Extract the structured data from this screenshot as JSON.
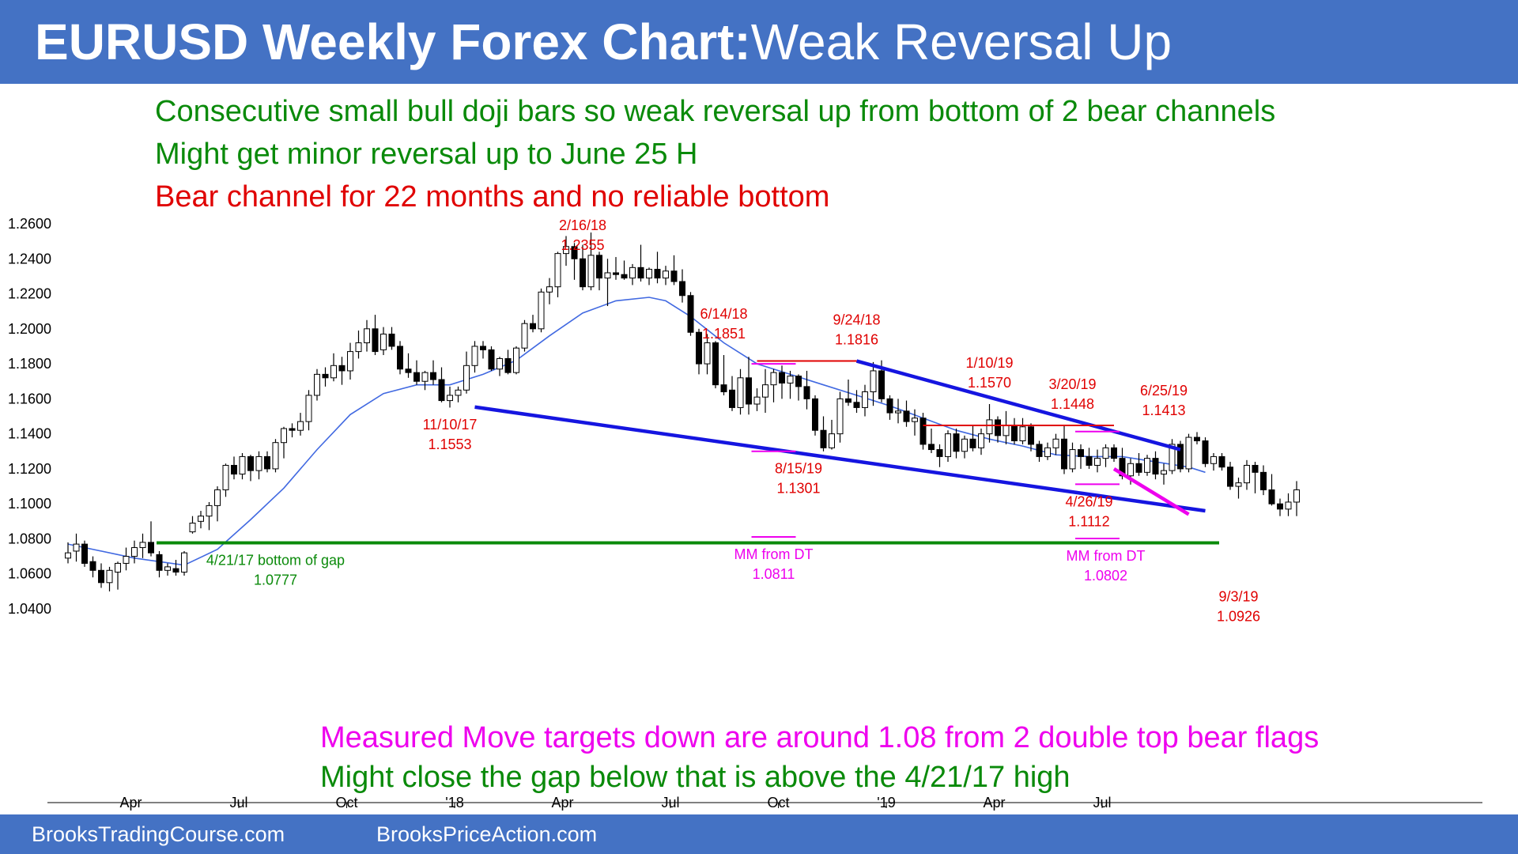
{
  "title": {
    "bold": "EURUSD Weekly Forex Chart:",
    "rest": "Weak Reversal Up"
  },
  "commentary": [
    {
      "text": "Consecutive small bull doji bars so weak reversal up from bottom of 2 bear channels",
      "color": "#0A8A0A"
    },
    {
      "text": "Might get minor reversal up to June 25 H",
      "color": "#0A8A0A"
    },
    {
      "text": "Bear channel for 22 months and no reliable bottom",
      "color": "#E00000"
    }
  ],
  "bottom_notes": [
    {
      "text": "Measured Move targets down are around 1.08 from 2 double top bear flags",
      "color": "#EE00EE"
    },
    {
      "text": "Might close the gap below that is above the 4/21/17 high",
      "color": "#0A8A0A"
    }
  ],
  "footer": {
    "left": "BrooksTradingCourse.com",
    "right": "BrooksPriceAction.com"
  },
  "colors": {
    "title_bar": "#4472C4",
    "bull_candle": "#FFFFFF",
    "bear_candle": "#000000",
    "moving_average": "#4169E1",
    "channel_lines": "#1515E0",
    "annotation_red": "#E00000",
    "annotation_green": "#0A8A0A",
    "annotation_magenta": "#EE00EE"
  },
  "chart_data": {
    "type": "candlestick",
    "symbol": "EURUSD",
    "timeframe": "weekly",
    "ylim": [
      1.03,
      1.275
    ],
    "y_ticks": [
      "1.2600",
      "1.2400",
      "1.2200",
      "1.2000",
      "1.1800",
      "1.1600",
      "1.1400",
      "1.1200",
      "1.1000",
      "1.0800",
      "1.0600",
      "1.0400"
    ],
    "x_ticks": [
      "Apr",
      "Jul",
      "Oct",
      "'18",
      "Apr",
      "Jul",
      "Oct",
      "'19",
      "Apr",
      "Jul"
    ],
    "x_tick_weeks": [
      7,
      20,
      33,
      46,
      59,
      72,
      85,
      98,
      111,
      124
    ],
    "candles": [
      [
        1.069,
        1.078,
        1.066,
        1.072
      ],
      [
        1.073,
        1.083,
        1.067,
        1.077
      ],
      [
        1.077,
        1.079,
        1.064,
        1.066
      ],
      [
        1.067,
        1.07,
        1.058,
        1.062
      ],
      [
        1.062,
        1.066,
        1.052,
        1.055
      ],
      [
        1.055,
        1.064,
        1.05,
        1.062
      ],
      [
        1.061,
        1.067,
        1.051,
        1.066
      ],
      [
        1.066,
        1.075,
        1.062,
        1.07
      ],
      [
        1.07,
        1.079,
        1.066,
        1.075
      ],
      [
        1.075,
        1.083,
        1.069,
        1.078
      ],
      [
        1.078,
        1.09,
        1.07,
        1.072
      ],
      [
        1.071,
        1.073,
        1.058,
        1.062
      ],
      [
        1.062,
        1.066,
        1.059,
        1.064
      ],
      [
        1.063,
        1.068,
        1.059,
        1.061
      ],
      [
        1.061,
        1.073,
        1.059,
        1.072
      ],
      [
        1.084,
        1.093,
        1.083,
        1.089
      ],
      [
        1.09,
        1.096,
        1.086,
        1.093
      ],
      [
        1.093,
        1.101,
        1.085,
        1.099
      ],
      [
        1.099,
        1.11,
        1.09,
        1.108
      ],
      [
        1.108,
        1.123,
        1.104,
        1.122
      ],
      [
        1.122,
        1.127,
        1.114,
        1.117
      ],
      [
        1.117,
        1.129,
        1.114,
        1.127
      ],
      [
        1.127,
        1.128,
        1.113,
        1.119
      ],
      [
        1.119,
        1.13,
        1.114,
        1.127
      ],
      [
        1.127,
        1.13,
        1.118,
        1.12
      ],
      [
        1.12,
        1.137,
        1.118,
        1.135
      ],
      [
        1.135,
        1.144,
        1.126,
        1.143
      ],
      [
        1.143,
        1.146,
        1.138,
        1.142
      ],
      [
        1.142,
        1.152,
        1.139,
        1.147
      ],
      [
        1.147,
        1.165,
        1.142,
        1.162
      ],
      [
        1.162,
        1.177,
        1.159,
        1.174
      ],
      [
        1.174,
        1.178,
        1.167,
        1.172
      ],
      [
        1.172,
        1.186,
        1.17,
        1.179
      ],
      [
        1.179,
        1.184,
        1.168,
        1.176
      ],
      [
        1.176,
        1.192,
        1.171,
        1.187
      ],
      [
        1.187,
        1.199,
        1.183,
        1.192
      ],
      [
        1.192,
        1.205,
        1.187,
        1.2
      ],
      [
        1.2,
        1.208,
        1.185,
        1.187
      ],
      [
        1.188,
        1.201,
        1.185,
        1.197
      ],
      [
        1.197,
        1.201,
        1.188,
        1.19
      ],
      [
        1.19,
        1.193,
        1.174,
        1.177
      ],
      [
        1.177,
        1.186,
        1.172,
        1.175
      ],
      [
        1.175,
        1.182,
        1.168,
        1.17
      ],
      [
        1.17,
        1.176,
        1.165,
        1.175
      ],
      [
        1.175,
        1.182,
        1.168,
        1.171
      ],
      [
        1.171,
        1.178,
        1.158,
        1.159
      ],
      [
        1.159,
        1.167,
        1.155,
        1.162
      ],
      [
        1.162,
        1.167,
        1.158,
        1.165
      ],
      [
        1.165,
        1.187,
        1.163,
        1.179
      ],
      [
        1.179,
        1.193,
        1.175,
        1.19
      ],
      [
        1.19,
        1.193,
        1.183,
        1.188
      ],
      [
        1.188,
        1.19,
        1.176,
        1.177
      ],
      [
        1.177,
        1.184,
        1.173,
        1.183
      ],
      [
        1.183,
        1.188,
        1.174,
        1.175
      ],
      [
        1.175,
        1.19,
        1.174,
        1.189
      ],
      [
        1.189,
        1.205,
        1.187,
        1.203
      ],
      [
        1.203,
        1.208,
        1.198,
        1.2
      ],
      [
        1.2,
        1.223,
        1.198,
        1.221
      ],
      [
        1.221,
        1.229,
        1.214,
        1.224
      ],
      [
        1.224,
        1.244,
        1.218,
        1.243
      ],
      [
        1.243,
        1.253,
        1.236,
        1.247
      ],
      [
        1.247,
        1.249,
        1.228,
        1.24
      ],
      [
        1.24,
        1.248,
        1.222,
        1.224
      ],
      [
        1.224,
        1.255,
        1.222,
        1.242
      ],
      [
        1.242,
        1.244,
        1.222,
        1.229
      ],
      [
        1.229,
        1.24,
        1.213,
        1.232
      ],
      [
        1.232,
        1.241,
        1.228,
        1.231
      ],
      [
        1.231,
        1.239,
        1.228,
        1.229
      ],
      [
        1.229,
        1.237,
        1.225,
        1.235
      ],
      [
        1.235,
        1.248,
        1.227,
        1.229
      ],
      [
        1.229,
        1.235,
        1.225,
        1.234
      ],
      [
        1.234,
        1.244,
        1.226,
        1.229
      ],
      [
        1.229,
        1.236,
        1.225,
        1.233
      ],
      [
        1.233,
        1.242,
        1.225,
        1.227
      ],
      [
        1.227,
        1.234,
        1.215,
        1.219
      ],
      [
        1.219,
        1.221,
        1.196,
        1.198
      ],
      [
        1.198,
        1.2,
        1.174,
        1.18
      ],
      [
        1.18,
        1.197,
        1.174,
        1.192
      ],
      [
        1.192,
        1.193,
        1.166,
        1.168
      ],
      [
        1.168,
        1.185,
        1.162,
        1.164
      ],
      [
        1.165,
        1.173,
        1.153,
        1.155
      ],
      [
        1.155,
        1.177,
        1.151,
        1.172
      ],
      [
        1.172,
        1.184,
        1.151,
        1.157
      ],
      [
        1.157,
        1.166,
        1.153,
        1.161
      ],
      [
        1.161,
        1.177,
        1.152,
        1.168
      ],
      [
        1.168,
        1.177,
        1.158,
        1.175
      ],
      [
        1.175,
        1.179,
        1.16,
        1.169
      ],
      [
        1.169,
        1.176,
        1.16,
        1.173
      ],
      [
        1.173,
        1.174,
        1.159,
        1.167
      ],
      [
        1.167,
        1.176,
        1.154,
        1.16
      ],
      [
        1.16,
        1.162,
        1.139,
        1.142
      ],
      [
        1.142,
        1.15,
        1.13,
        1.132
      ],
      [
        1.132,
        1.148,
        1.131,
        1.14
      ],
      [
        1.14,
        1.164,
        1.135,
        1.16
      ],
      [
        1.16,
        1.171,
        1.156,
        1.158
      ],
      [
        1.158,
        1.165,
        1.152,
        1.155
      ],
      [
        1.155,
        1.168,
        1.15,
        1.164
      ],
      [
        1.164,
        1.181,
        1.156,
        1.176
      ],
      [
        1.176,
        1.182,
        1.158,
        1.16
      ],
      [
        1.16,
        1.162,
        1.148,
        1.152
      ],
      [
        1.152,
        1.16,
        1.146,
        1.153
      ],
      [
        1.153,
        1.159,
        1.144,
        1.147
      ],
      [
        1.147,
        1.154,
        1.139,
        1.149
      ],
      [
        1.149,
        1.152,
        1.131,
        1.134
      ],
      [
        1.134,
        1.143,
        1.129,
        1.131
      ],
      [
        1.131,
        1.134,
        1.121,
        1.127
      ],
      [
        1.127,
        1.142,
        1.124,
        1.14
      ],
      [
        1.14,
        1.143,
        1.126,
        1.13
      ],
      [
        1.13,
        1.139,
        1.126,
        1.137
      ],
      [
        1.137,
        1.145,
        1.13,
        1.132
      ],
      [
        1.132,
        1.143,
        1.128,
        1.14
      ],
      [
        1.14,
        1.157,
        1.135,
        1.148
      ],
      [
        1.148,
        1.15,
        1.135,
        1.139
      ],
      [
        1.139,
        1.153,
        1.134,
        1.145
      ],
      [
        1.145,
        1.149,
        1.134,
        1.136
      ],
      [
        1.136,
        1.149,
        1.134,
        1.144
      ],
      [
        1.144,
        1.146,
        1.13,
        1.134
      ],
      [
        1.134,
        1.136,
        1.124,
        1.127
      ],
      [
        1.127,
        1.135,
        1.125,
        1.132
      ],
      [
        1.132,
        1.14,
        1.128,
        1.137
      ],
      [
        1.137,
        1.145,
        1.117,
        1.12
      ],
      [
        1.12,
        1.135,
        1.118,
        1.131
      ],
      [
        1.131,
        1.134,
        1.12,
        1.127
      ],
      [
        1.127,
        1.132,
        1.12,
        1.122
      ],
      [
        1.122,
        1.131,
        1.118,
        1.126
      ],
      [
        1.126,
        1.134,
        1.121,
        1.132
      ],
      [
        1.132,
        1.134,
        1.124,
        1.126
      ],
      [
        1.126,
        1.132,
        1.114,
        1.116
      ],
      [
        1.116,
        1.126,
        1.111,
        1.123
      ],
      [
        1.123,
        1.129,
        1.116,
        1.118
      ],
      [
        1.118,
        1.128,
        1.116,
        1.126
      ],
      [
        1.126,
        1.13,
        1.114,
        1.117
      ],
      [
        1.117,
        1.123,
        1.111,
        1.119
      ],
      [
        1.119,
        1.137,
        1.117,
        1.134
      ],
      [
        1.134,
        1.136,
        1.118,
        1.12
      ],
      [
        1.12,
        1.14,
        1.118,
        1.138
      ],
      [
        1.138,
        1.141,
        1.134,
        1.136
      ],
      [
        1.136,
        1.138,
        1.121,
        1.123
      ],
      [
        1.123,
        1.129,
        1.119,
        1.127
      ],
      [
        1.127,
        1.129,
        1.119,
        1.121
      ],
      [
        1.121,
        1.124,
        1.108,
        1.11
      ],
      [
        1.11,
        1.115,
        1.103,
        1.112
      ],
      [
        1.112,
        1.125,
        1.108,
        1.122
      ],
      [
        1.122,
        1.124,
        1.106,
        1.118
      ],
      [
        1.118,
        1.122,
        1.105,
        1.108
      ],
      [
        1.108,
        1.117,
        1.099,
        1.1
      ],
      [
        1.1,
        1.103,
        1.093,
        1.097
      ],
      [
        1.097,
        1.106,
        1.093,
        1.101
      ],
      [
        1.101,
        1.113,
        1.093,
        1.108
      ]
    ],
    "moving_average": {
      "name": "20-bar EMA",
      "values": [
        [
          0,
          1.077
        ],
        [
          8,
          1.069
        ],
        [
          14,
          1.065
        ],
        [
          18,
          1.074
        ],
        [
          22,
          1.091
        ],
        [
          26,
          1.109
        ],
        [
          30,
          1.131
        ],
        [
          34,
          1.151
        ],
        [
          38,
          1.163
        ],
        [
          42,
          1.168
        ],
        [
          46,
          1.168
        ],
        [
          50,
          1.174
        ],
        [
          54,
          1.182
        ],
        [
          58,
          1.196
        ],
        [
          62,
          1.209
        ],
        [
          66,
          1.216
        ],
        [
          70,
          1.218
        ],
        [
          72,
          1.216
        ],
        [
          75,
          1.207
        ],
        [
          79,
          1.192
        ],
        [
          83,
          1.18
        ],
        [
          87,
          1.174
        ],
        [
          91,
          1.168
        ],
        [
          95,
          1.162
        ],
        [
          99,
          1.156
        ],
        [
          103,
          1.149
        ],
        [
          107,
          1.142
        ],
        [
          111,
          1.137
        ],
        [
          115,
          1.133
        ],
        [
          119,
          1.128
        ],
        [
          123,
          1.127
        ],
        [
          127,
          1.127
        ],
        [
          131,
          1.124
        ],
        [
          135,
          1.121
        ],
        [
          137,
          1.118
        ]
      ]
    },
    "lines": [
      {
        "name": "upper-channel",
        "color": "#1515E0",
        "points": [
          [
            95,
            1.1816
          ],
          [
            134,
            1.131
          ]
        ]
      },
      {
        "name": "lower-channel",
        "color": "#1515E0",
        "points": [
          [
            49,
            1.1553
          ],
          [
            137,
            1.096
          ]
        ]
      },
      {
        "name": "wedge-line",
        "color": "#EE00EE",
        "points": [
          [
            126,
            1.12
          ],
          [
            135,
            1.094
          ]
        ]
      },
      {
        "name": "gap-line",
        "color": "#0A8A0A",
        "points": [
          [
            14,
            1.0777
          ],
          [
            140,
            1.0777
          ]
        ]
      },
      {
        "name": "double-top-line-1",
        "color": "#E00000",
        "points": [
          [
            83,
            1.1816
          ],
          [
            95,
            1.1816
          ]
        ]
      },
      {
        "name": "double-top-line-2",
        "color": "#E00000",
        "points": [
          [
            103,
            1.1448
          ],
          [
            126,
            1.1448
          ]
        ]
      }
    ],
    "markers": [
      {
        "name": "mm-marker-1-top",
        "color": "#EE00EE",
        "week": 85,
        "price": 1.18
      },
      {
        "name": "mm-marker-1-bottom",
        "color": "#EE00EE",
        "week": 85,
        "price": 1.13
      },
      {
        "name": "mm-marker-1-target",
        "color": "#EE00EE",
        "week": 85,
        "price": 1.0811
      },
      {
        "name": "mm-marker-2-top",
        "color": "#EE00EE",
        "week": 124,
        "price": 1.1413
      },
      {
        "name": "mm-marker-2-bottom",
        "color": "#EE00EE",
        "week": 124,
        "price": 1.1112
      },
      {
        "name": "mm-marker-2-target",
        "color": "#EE00EE",
        "week": 124,
        "price": 1.0802
      }
    ],
    "annotations": [
      {
        "color": "#E00000",
        "week": 62,
        "price": 1.2355,
        "lines": [
          "2/16/18",
          "1.2355"
        ],
        "pos": "above"
      },
      {
        "color": "#E00000",
        "week": 79,
        "price": 1.1851,
        "lines": [
          "6/14/18",
          "1.1851"
        ],
        "pos": "above"
      },
      {
        "color": "#E00000",
        "week": 95,
        "price": 1.1816,
        "lines": [
          "9/24/18",
          "1.1816"
        ],
        "pos": "above"
      },
      {
        "color": "#E00000",
        "week": 111,
        "price": 1.157,
        "lines": [
          "1/10/19",
          "1.1570"
        ],
        "pos": "above"
      },
      {
        "color": "#E00000",
        "week": 121,
        "price": 1.1448,
        "lines": [
          "3/20/19",
          "1.1448"
        ],
        "pos": "above"
      },
      {
        "color": "#E00000",
        "week": 132,
        "price": 1.1413,
        "lines": [
          "6/25/19",
          "1.1413"
        ],
        "pos": "above"
      },
      {
        "color": "#E00000",
        "week": 46,
        "price": 1.1553,
        "lines": [
          "11/10/17",
          "1.1553"
        ],
        "pos": "below"
      },
      {
        "color": "#E00000",
        "week": 88,
        "price": 1.1301,
        "lines": [
          "8/15/19",
          "1.1301"
        ],
        "pos": "below"
      },
      {
        "color": "#E00000",
        "week": 123,
        "price": 1.1112,
        "lines": [
          "4/26/19",
          "1.1112"
        ],
        "pos": "below"
      },
      {
        "color": "#E00000",
        "week": 141,
        "price": 1.0926,
        "lines": [
          "9/3/19",
          "1.0926"
        ],
        "pos": "far-below"
      },
      {
        "color": "#0A8A0A",
        "week": 25,
        "price": 1.0777,
        "lines": [
          "4/21/17 bottom of gap",
          "1.0777"
        ],
        "pos": "below"
      },
      {
        "color": "#EE00EE",
        "week": 85,
        "price": 1.0811,
        "lines": [
          "MM from DT",
          "1.0811"
        ],
        "pos": "below"
      },
      {
        "color": "#EE00EE",
        "week": 125,
        "price": 1.0802,
        "lines": [
          "MM from DT",
          "1.0802"
        ],
        "pos": "below"
      }
    ]
  }
}
